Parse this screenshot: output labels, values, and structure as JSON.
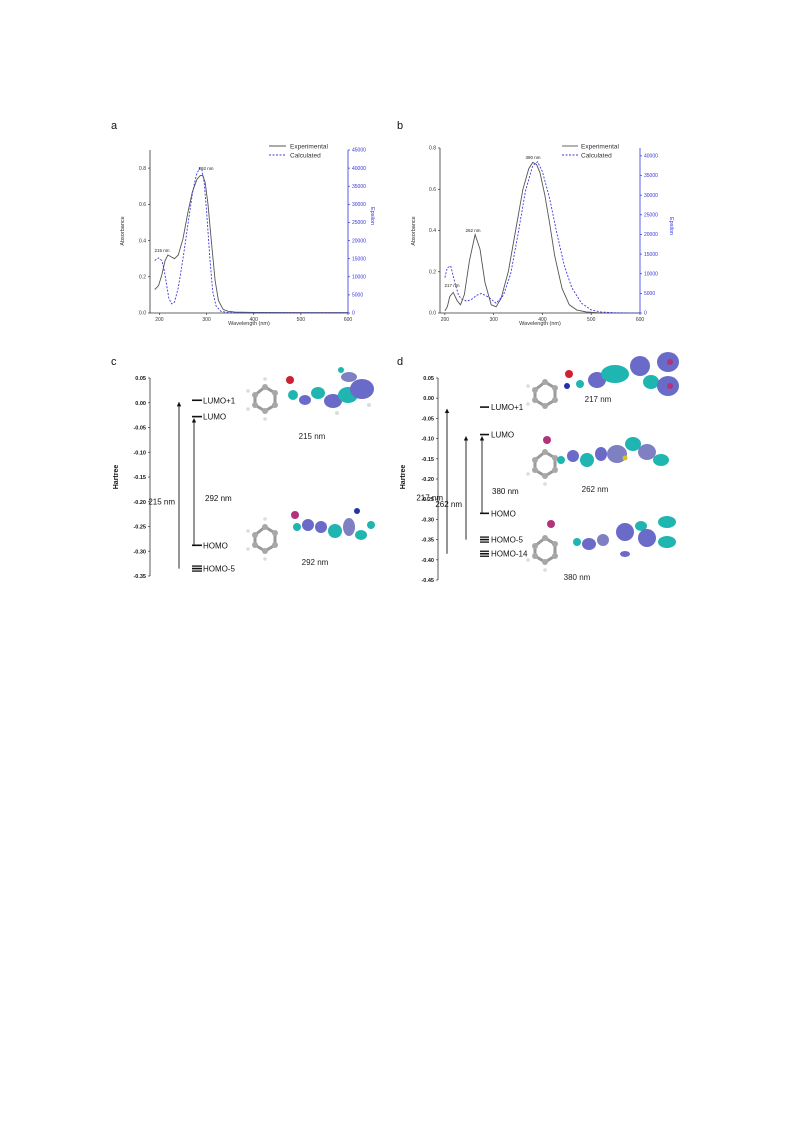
{
  "panels": [
    {
      "letter": "a",
      "legend": [
        "Experimental",
        "Calculated"
      ],
      "peak_labels": [
        "215 nm",
        "292 nm"
      ]
    },
    {
      "letter": "b",
      "legend": [
        "Experimental",
        "Calculated"
      ],
      "peak_labels": [
        "217 nm",
        "262 nm",
        "380 nm"
      ]
    },
    {
      "letter": "c",
      "ylabel": "Hartree",
      "levels": [
        "LUMO+1",
        "LUMO",
        "HOMO",
        "HOMO-5"
      ],
      "transitions": [
        "215 nm",
        "292 nm"
      ],
      "orbital_captions": [
        "215 nm",
        "292 nm"
      ]
    },
    {
      "letter": "d",
      "ylabel": "Hartree",
      "levels": [
        "LUMO+1",
        "LUMO",
        "HOMO",
        "HOMO-5",
        "HOMO-14"
      ],
      "transitions": [
        "217 nm",
        "262 nm",
        "380 nm"
      ],
      "orbital_captions": [
        "217 nm",
        "262 nm",
        "380 nm"
      ]
    }
  ],
  "colors": {
    "experimental": "#555555",
    "calculated": "#3b3bdc",
    "orbital_positive": "#1fb5b0",
    "orbital_negative": "#6a6ac8",
    "atom_carbon": "#8a8a8a",
    "atom_oxygen": "#cc2233"
  },
  "chart_data": [
    {
      "type": "line",
      "panel": "a",
      "xlabel": "Wavelength (nm)",
      "ylabel": "Absorbance",
      "y2label": "Epsilon",
      "xlim": [
        180,
        600
      ],
      "ylim": [
        0,
        0.9
      ],
      "y2lim": [
        0,
        45000
      ],
      "xticks": [
        200,
        300,
        400,
        500,
        600
      ],
      "yticks": [
        0.0,
        0.2,
        0.4,
        0.6,
        0.8
      ],
      "y2ticks": [
        0,
        5000,
        10000,
        15000,
        20000,
        25000,
        30000,
        35000,
        40000,
        45000
      ],
      "series": [
        {
          "name": "Experimental",
          "axis": "left",
          "x": [
            190,
            198,
            205,
            212,
            218,
            225,
            232,
            240,
            250,
            260,
            270,
            280,
            287,
            292,
            297,
            303,
            310,
            318,
            325,
            335,
            345,
            360,
            400,
            500,
            600
          ],
          "y": [
            0.13,
            0.15,
            0.21,
            0.29,
            0.32,
            0.31,
            0.3,
            0.32,
            0.41,
            0.55,
            0.67,
            0.74,
            0.76,
            0.76,
            0.72,
            0.6,
            0.4,
            0.18,
            0.07,
            0.02,
            0.01,
            0.005,
            0.003,
            0.002,
            0.002
          ]
        },
        {
          "name": "Calculated",
          "axis": "right",
          "x": [
            190,
            198,
            205,
            210,
            215,
            220,
            226,
            232,
            240,
            250,
            260,
            270,
            278,
            285,
            290,
            295,
            300,
            307,
            313,
            320,
            330,
            345,
            360,
            400,
            500,
            600
          ],
          "y": [
            14500,
            15200,
            14500,
            12000,
            8000,
            4000,
            2500,
            3000,
            7000,
            15000,
            24000,
            33000,
            38000,
            40000,
            39500,
            36000,
            28000,
            15000,
            6000,
            2000,
            500,
            150,
            50,
            0,
            0,
            0
          ]
        }
      ]
    },
    {
      "type": "line",
      "panel": "b",
      "xlabel": "Wavelength (nm)",
      "ylabel": "Absorbance",
      "y2label": "Epsilon",
      "xlim": [
        190,
        600
      ],
      "ylim": [
        0,
        0.8
      ],
      "y2lim": [
        0,
        42000
      ],
      "xticks": [
        200,
        300,
        400,
        500,
        600
      ],
      "yticks": [
        0.0,
        0.2,
        0.4,
        0.6,
        0.8
      ],
      "y2ticks": [
        0,
        5000,
        10000,
        15000,
        20000,
        25000,
        30000,
        35000,
        40000
      ],
      "series": [
        {
          "name": "Experimental",
          "axis": "left",
          "x": [
            200,
            205,
            210,
            217,
            225,
            232,
            240,
            250,
            262,
            272,
            282,
            295,
            305,
            315,
            330,
            345,
            360,
            372,
            380,
            388,
            395,
            405,
            415,
            425,
            440,
            455,
            470,
            490,
            520,
            600
          ],
          "y": [
            0.01,
            0.03,
            0.08,
            0.1,
            0.06,
            0.04,
            0.09,
            0.25,
            0.38,
            0.31,
            0.15,
            0.04,
            0.03,
            0.07,
            0.2,
            0.4,
            0.6,
            0.7,
            0.73,
            0.72,
            0.68,
            0.57,
            0.43,
            0.28,
            0.12,
            0.04,
            0.015,
            0.005,
            0.0,
            0.0
          ]
        },
        {
          "name": "Calculated",
          "axis": "right",
          "x": [
            200,
            205,
            212,
            220,
            228,
            235,
            245,
            255,
            265,
            275,
            290,
            305,
            320,
            335,
            350,
            365,
            380,
            390,
            400,
            415,
            430,
            445,
            460,
            480,
            500,
            520,
            550,
            600
          ],
          "y": [
            9000,
            11500,
            12000,
            8000,
            4500,
            3500,
            3000,
            3500,
            4500,
            5000,
            4000,
            2500,
            4500,
            10000,
            20000,
            31000,
            37500,
            38500,
            36000,
            29000,
            20000,
            12000,
            6500,
            2500,
            800,
            250,
            50,
            0
          ]
        }
      ]
    },
    {
      "type": "line",
      "panel": "c",
      "ylabel": "Hartree",
      "ylim": [
        -0.35,
        0.05
      ],
      "yticks": [
        0.05,
        0.0,
        -0.05,
        -0.1,
        -0.15,
        -0.2,
        -0.25,
        -0.3,
        -0.35
      ],
      "levels": [
        {
          "label": "LUMO+1",
          "energy": 0.005
        },
        {
          "label": "LUMO",
          "energy": -0.028
        },
        {
          "label": "HOMO",
          "energy": -0.288
        },
        {
          "label": "HOMO-5",
          "energy": -0.335
        }
      ],
      "transitions": [
        {
          "label": "215 nm",
          "from": "HOMO-5",
          "to": "LUMO+1"
        },
        {
          "label": "292 nm",
          "from": "HOMO",
          "to": "LUMO"
        }
      ]
    },
    {
      "type": "line",
      "panel": "d",
      "ylabel": "Hartree",
      "ylim": [
        -0.45,
        0.05
      ],
      "yticks": [
        0.05,
        0.0,
        -0.05,
        -0.1,
        -0.15,
        -0.2,
        -0.25,
        -0.3,
        -0.35,
        -0.4,
        -0.45
      ],
      "levels": [
        {
          "label": "LUMO+1",
          "energy": -0.022
        },
        {
          "label": "LUMO",
          "energy": -0.09
        },
        {
          "label": "HOMO",
          "energy": -0.285
        },
        {
          "label": "HOMO-5",
          "energy": -0.35
        },
        {
          "label": "HOMO-14",
          "energy": -0.385
        }
      ],
      "transitions": [
        {
          "label": "217 nm",
          "from": "HOMO-14",
          "to": "LUMO+1"
        },
        {
          "label": "262 nm",
          "from": "HOMO-5",
          "to": "LUMO"
        },
        {
          "label": "380 nm",
          "from": "HOMO",
          "to": "LUMO"
        }
      ]
    }
  ]
}
